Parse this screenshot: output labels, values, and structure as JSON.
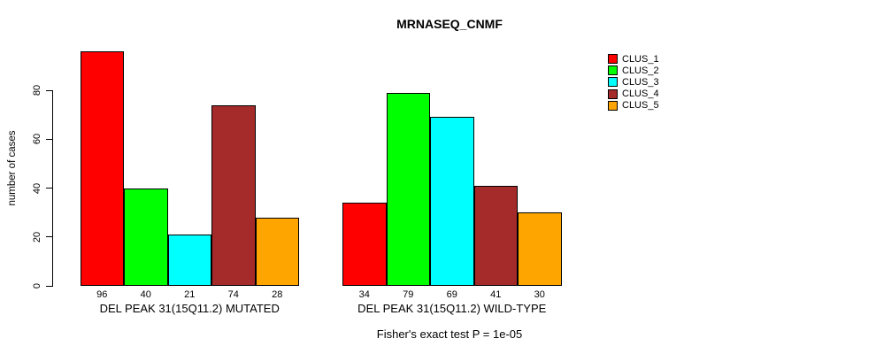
{
  "chart_data": {
    "type": "bar",
    "title": "MRNASEQ_CNMF",
    "ylabel": "number of cases",
    "xlabel": "",
    "yticks": [
      0,
      20,
      40,
      60,
      80
    ],
    "ylim": [
      0,
      96
    ],
    "grid": false,
    "legend_position": "right",
    "groups": [
      {
        "label": "DEL PEAK 31(15Q11.2) MUTATED",
        "values": [
          96,
          40,
          21,
          74,
          28
        ]
      },
      {
        "label": "DEL PEAK 31(15Q11.2) WILD-TYPE",
        "values": [
          34,
          79,
          69,
          41,
          30
        ]
      }
    ],
    "series": [
      {
        "name": "CLUS_1",
        "color": "#FF0000"
      },
      {
        "name": "CLUS_2",
        "color": "#00FF00"
      },
      {
        "name": "CLUS_3",
        "color": "#00FFFF"
      },
      {
        "name": "CLUS_4",
        "color": "#A52A2A"
      },
      {
        "name": "CLUS_5",
        "color": "#FFA500"
      }
    ],
    "annotation": "Fisher's exact test P = 1e-05"
  }
}
